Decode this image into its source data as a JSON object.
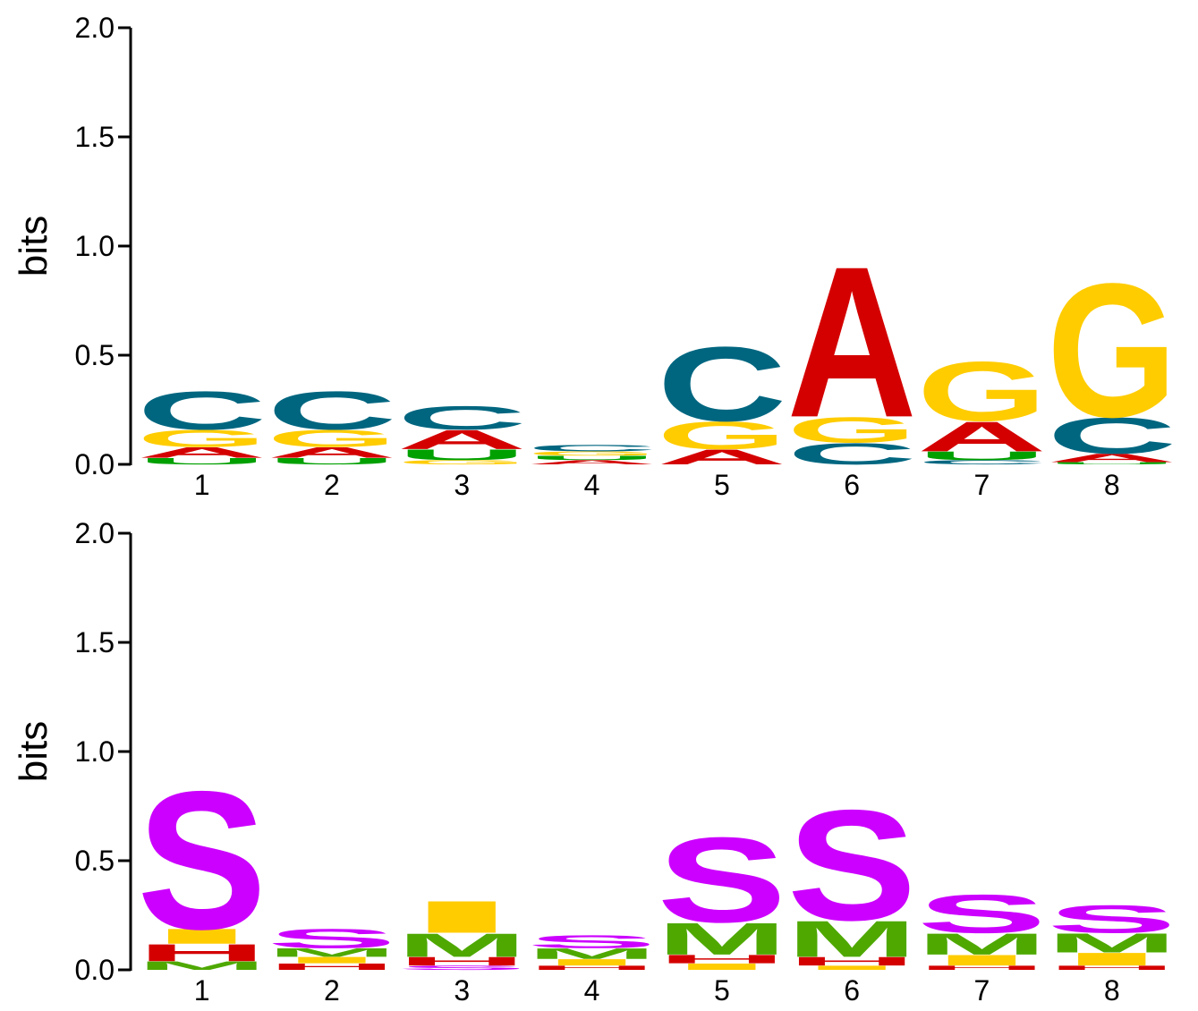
{
  "colors": {
    "A": "#d40000",
    "C": "#006680",
    "G": "#ffcc00",
    "U": "#00a000",
    "S": "#cc00ff",
    "M": "#4ea800",
    "H": "#d40000",
    "I": "#ffcc00"
  },
  "chart_data": [
    {
      "type": "sequence-logo",
      "ylabel": "bits",
      "ylim": [
        0,
        2.0
      ],
      "yticks": [
        "0.0",
        "0.5",
        "1.0",
        "1.5",
        "2.0"
      ],
      "xticks": [
        "1",
        "2",
        "3",
        "4",
        "5",
        "6",
        "7",
        "8"
      ],
      "positions": [
        [
          {
            "letter": "U",
            "height": 0.03
          },
          {
            "letter": "A",
            "height": 0.05
          },
          {
            "letter": "G",
            "height": 0.08
          },
          {
            "letter": "C",
            "height": 0.18
          }
        ],
        [
          {
            "letter": "U",
            "height": 0.03
          },
          {
            "letter": "A",
            "height": 0.05
          },
          {
            "letter": "G",
            "height": 0.08
          },
          {
            "letter": "C",
            "height": 0.18
          }
        ],
        [
          {
            "letter": "G",
            "height": 0.02
          },
          {
            "letter": "U",
            "height": 0.05
          },
          {
            "letter": "A",
            "height": 0.09
          },
          {
            "letter": "C",
            "height": 0.11
          }
        ],
        [
          {
            "letter": "A",
            "height": 0.02
          },
          {
            "letter": "U",
            "height": 0.02
          },
          {
            "letter": "G",
            "height": 0.02
          },
          {
            "letter": "C",
            "height": 0.03
          }
        ],
        [
          {
            "letter": "A",
            "height": 0.07
          },
          {
            "letter": "G",
            "height": 0.13
          },
          {
            "letter": "C",
            "height": 0.35
          }
        ],
        [
          {
            "letter": "C",
            "height": 0.1
          },
          {
            "letter": "G",
            "height": 0.12
          },
          {
            "letter": "A",
            "height": 0.71
          }
        ],
        [
          {
            "letter": "C",
            "height": 0.02
          },
          {
            "letter": "U",
            "height": 0.04
          },
          {
            "letter": "A",
            "height": 0.14
          },
          {
            "letter": "G",
            "height": 0.28
          }
        ],
        [
          {
            "letter": "U",
            "height": 0.01
          },
          {
            "letter": "A",
            "height": 0.04
          },
          {
            "letter": "C",
            "height": 0.17
          },
          {
            "letter": "G",
            "height": 0.63
          }
        ]
      ]
    },
    {
      "type": "sequence-logo",
      "ylabel": "bits",
      "ylim": [
        0,
        2.0
      ],
      "yticks": [
        "0.0",
        "0.5",
        "1.0",
        "1.5",
        "2.0"
      ],
      "xticks": [
        "1",
        "2",
        "3",
        "4",
        "5",
        "6",
        "7",
        "8"
      ],
      "positions": [
        [
          {
            "letter": "M",
            "height": 0.04
          },
          {
            "letter": "H",
            "height": 0.08
          },
          {
            "letter": "I",
            "height": 0.07
          },
          {
            "letter": "S",
            "height": 0.65
          }
        ],
        [
          {
            "letter": "H",
            "height": 0.03
          },
          {
            "letter": "I",
            "height": 0.03
          },
          {
            "letter": "M",
            "height": 0.04
          },
          {
            "letter": "S",
            "height": 0.09
          }
        ],
        [
          {
            "letter": "S",
            "height": 0.02
          },
          {
            "letter": "H",
            "height": 0.04
          },
          {
            "letter": "M",
            "height": 0.11
          },
          {
            "letter": "I",
            "height": 0.15
          }
        ],
        [
          {
            "letter": "H",
            "height": 0.02
          },
          {
            "letter": "I",
            "height": 0.03
          },
          {
            "letter": "M",
            "height": 0.05
          },
          {
            "letter": "S",
            "height": 0.06
          }
        ],
        [
          {
            "letter": "I",
            "height": 0.03
          },
          {
            "letter": "H",
            "height": 0.04
          },
          {
            "letter": "M",
            "height": 0.15
          },
          {
            "letter": "S",
            "height": 0.4
          }
        ],
        [
          {
            "letter": "I",
            "height": 0.02
          },
          {
            "letter": "H",
            "height": 0.04
          },
          {
            "letter": "M",
            "height": 0.17
          },
          {
            "letter": "S",
            "height": 0.52
          }
        ],
        [
          {
            "letter": "H",
            "height": 0.02
          },
          {
            "letter": "I",
            "height": 0.05
          },
          {
            "letter": "M",
            "height": 0.1
          },
          {
            "letter": "S",
            "height": 0.18
          }
        ],
        [
          {
            "letter": "H",
            "height": 0.02
          },
          {
            "letter": "I",
            "height": 0.06
          },
          {
            "letter": "M",
            "height": 0.09
          },
          {
            "letter": "S",
            "height": 0.13
          }
        ]
      ]
    }
  ]
}
